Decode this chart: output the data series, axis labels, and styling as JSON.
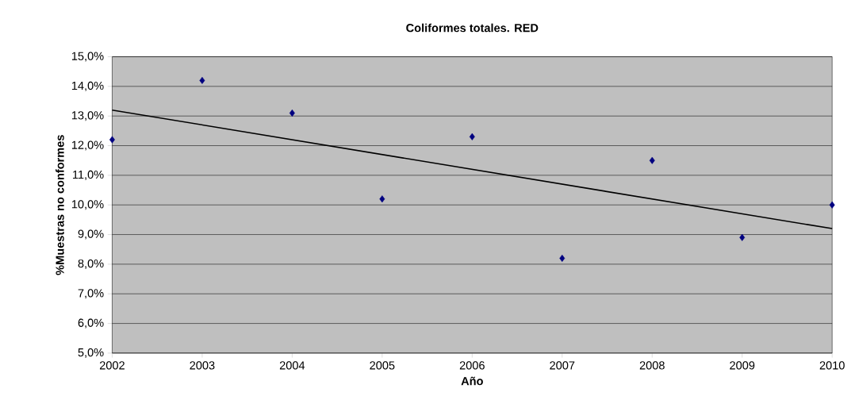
{
  "chart_data": {
    "type": "scatter",
    "title": "Coliformes totales. RED",
    "xlabel": "Año",
    "ylabel": "%Muestras no conformes",
    "x": [
      2002,
      2003,
      2004,
      2005,
      2006,
      2007,
      2008,
      2009,
      2010
    ],
    "series": [
      {
        "color": "#000080",
        "marker": "diamond",
        "values": [
          12.2,
          14.2,
          13.1,
          10.2,
          12.3,
          8.2,
          11.5,
          8.9,
          10.0
        ]
      },
      {
        "type": "line",
        "marker": "none",
        "color": "#000000",
        "x": [
          2002,
          2010
        ],
        "values": [
          13.2,
          9.2
        ]
      }
    ],
    "grid": "y",
    "xlim": [
      2002,
      2010
    ],
    "xticks": [
      2002,
      2003,
      2004,
      2005,
      2006,
      2007,
      2008,
      2009,
      2010
    ],
    "ylim": [
      5,
      15
    ],
    "yticks": [
      {
        "value": 5,
        "label": "5,0%"
      },
      {
        "value": 6,
        "label": "6,0%"
      },
      {
        "value": 7,
        "label": "7,0%"
      },
      {
        "value": 8,
        "label": "8,0%"
      },
      {
        "value": 9,
        "label": "9,0%"
      },
      {
        "value": 10,
        "label": "10,0%"
      },
      {
        "value": 11,
        "label": "11,0%"
      },
      {
        "value": 12,
        "label": "12,0%"
      },
      {
        "value": 13,
        "label": "13,0%"
      },
      {
        "value": 14,
        "label": "14,0%"
      },
      {
        "value": 15,
        "label": "15,0%"
      }
    ]
  }
}
